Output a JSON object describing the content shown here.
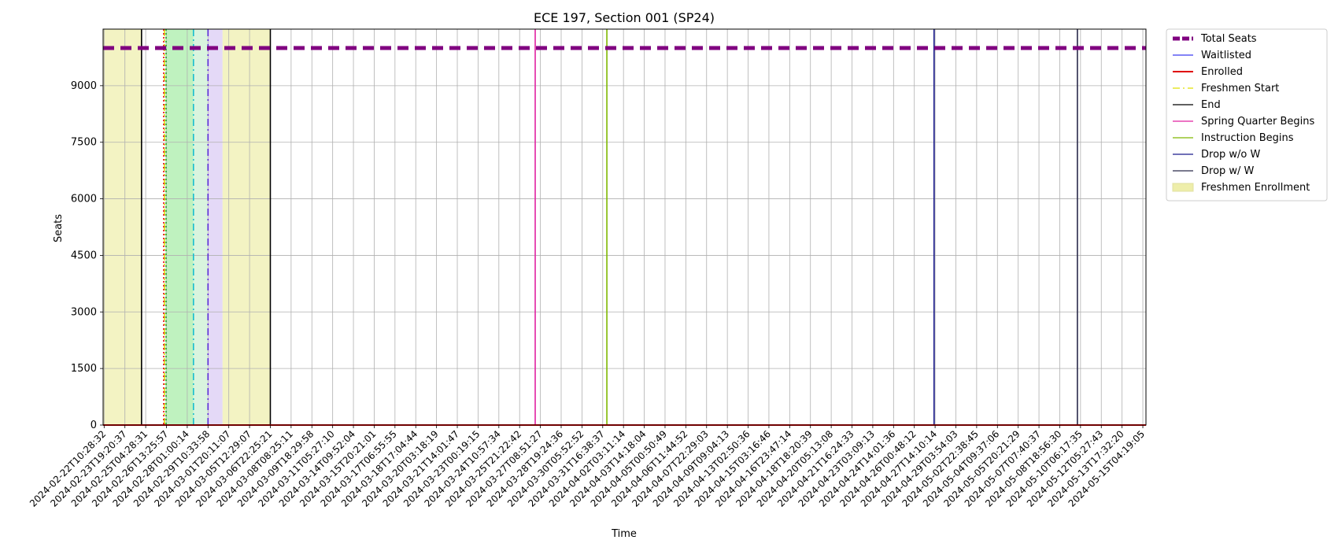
{
  "chart_data": {
    "type": "line",
    "title": "ECE 197, Section 001 (SP24)",
    "xlabel": "Time",
    "ylabel": "Seats",
    "ylim": [
      0,
      10500
    ],
    "yticks": [
      0,
      1500,
      3000,
      4500,
      6000,
      7500,
      9000
    ],
    "grid": true,
    "legend_position": "outside-right",
    "x_tick_labels": [
      "2024-02-22T10:28:32",
      "2024-02-23T19:20:37",
      "2024-02-25T04:28:31",
      "2024-02-26T13:25:57",
      "2024-02-28T01:00:14",
      "2024-02-29T10:33:58",
      "2024-03-01T20:11:07",
      "2024-03-05T12:29:07",
      "2024-03-06T22:25:21",
      "2024-03-08T08:25:11",
      "2024-03-09T18:29:58",
      "2024-03-11T05:27:10",
      "2024-03-14T09:52:04",
      "2024-03-15T20:21:01",
      "2024-03-17T06:55:55",
      "2024-03-18T17:04:44",
      "2024-03-20T03:18:19",
      "2024-03-21T14:01:47",
      "2024-03-23T00:19:15",
      "2024-03-24T10:57:34",
      "2024-03-25T21:22:42",
      "2024-03-27T08:51:27",
      "2024-03-28T19:24:36",
      "2024-03-30T05:52:52",
      "2024-03-31T16:38:37",
      "2024-04-02T03:11:14",
      "2024-04-03T14:18:04",
      "2024-04-05T00:50:49",
      "2024-04-06T11:44:52",
      "2024-04-07T22:29:03",
      "2024-04-09T09:04:13",
      "2024-04-13T02:50:36",
      "2024-04-15T03:16:46",
      "2024-04-16T23:47:14",
      "2024-04-18T18:20:39",
      "2024-04-20T05:13:08",
      "2024-04-21T16:24:33",
      "2024-04-23T03:09:13",
      "2024-04-24T14:01:36",
      "2024-04-26T00:48:12",
      "2024-04-27T14:10:14",
      "2024-04-29T03:54:03",
      "2024-05-02T22:38:45",
      "2024-05-04T09:37:06",
      "2024-05-05T20:21:29",
      "2024-05-07T07:40:37",
      "2024-05-08T18:56:30",
      "2024-05-10T06:17:35",
      "2024-05-12T05:27:43",
      "2024-05-13T17:32:20",
      "2024-05-15T04:19:05"
    ],
    "x_index_range": [
      -0.05,
      50.15
    ],
    "series": [
      {
        "name": "Total Seats",
        "values_constant": 10000,
        "color": "#800080",
        "style": "dashed-thick"
      },
      {
        "name": "Waitlisted",
        "values_constant": 0,
        "color": "#3a3af0",
        "style": "solid"
      },
      {
        "name": "Enrolled",
        "values_constant": 0,
        "color": "#e00000",
        "style": "solid-thick"
      }
    ],
    "spans": [
      {
        "label": "Freshmen Enrollment",
        "from_index": -0.05,
        "to_index": 1.8,
        "color": "#eeeeaa"
      },
      {
        "label": "",
        "from_index": 2.95,
        "to_index": 4.3,
        "color": "#a4eda4"
      },
      {
        "label": "",
        "from_index": 4.3,
        "to_index": 5.0,
        "color": "#c9f0d0"
      },
      {
        "label": "",
        "from_index": 5.0,
        "to_index": 5.7,
        "color": "#d8c9f4"
      },
      {
        "label": "",
        "from_index": 5.7,
        "to_index": 8.0,
        "color": "#eeeeaa"
      }
    ],
    "vlines": [
      {
        "label": "Freshmen Start",
        "index": 2.9,
        "color": "#e0e000",
        "style": "dashdot"
      },
      {
        "label": "",
        "index": 2.87,
        "color": "#e00000",
        "style": "dotted"
      },
      {
        "label": "",
        "index": 2.98,
        "color": "#22aa22",
        "style": "dotted"
      },
      {
        "label": "",
        "index": 4.3,
        "color": "#17becf",
        "style": "dashdot"
      },
      {
        "label": "",
        "index": 5.0,
        "color": "#5b2bd6",
        "style": "dashdot"
      },
      {
        "label": "End",
        "index": 1.8,
        "color": "#000000",
        "style": "solid"
      },
      {
        "label": "",
        "index": 8.0,
        "color": "#000000",
        "style": "solid"
      },
      {
        "label": "Spring Quarter Begins",
        "index": 20.75,
        "color": "#e020a0",
        "style": "solid"
      },
      {
        "label": "Instruction Begins",
        "index": 24.2,
        "color": "#7fb800",
        "style": "solid"
      },
      {
        "label": "Drop w/o W",
        "index": 39.95,
        "color": "#1a1a8c",
        "style": "solid"
      },
      {
        "label": "Drop w/ W",
        "index": 46.85,
        "color": "#2a2a4a",
        "style": "solid"
      }
    ],
    "legend": [
      {
        "name": "Total Seats",
        "color": "#800080",
        "style": "dashed-thick"
      },
      {
        "name": "Waitlisted",
        "color": "#3a3af0",
        "style": "solid"
      },
      {
        "name": "Enrolled",
        "color": "#e00000",
        "style": "solid-thick"
      },
      {
        "name": "Freshmen Start",
        "color": "#e0e000",
        "style": "dashdot"
      },
      {
        "name": "End",
        "color": "#000000",
        "style": "solid"
      },
      {
        "name": "Spring Quarter Begins",
        "color": "#e020a0",
        "style": "solid"
      },
      {
        "name": "Instruction Begins",
        "color": "#7fb800",
        "style": "solid"
      },
      {
        "name": "Drop w/o W",
        "color": "#1a1a8c",
        "style": "solid"
      },
      {
        "name": "Drop w/ W",
        "color": "#2a2a4a",
        "style": "solid"
      },
      {
        "name": "Freshmen Enrollment",
        "color": "#eeeeaa",
        "style": "patch"
      }
    ]
  }
}
